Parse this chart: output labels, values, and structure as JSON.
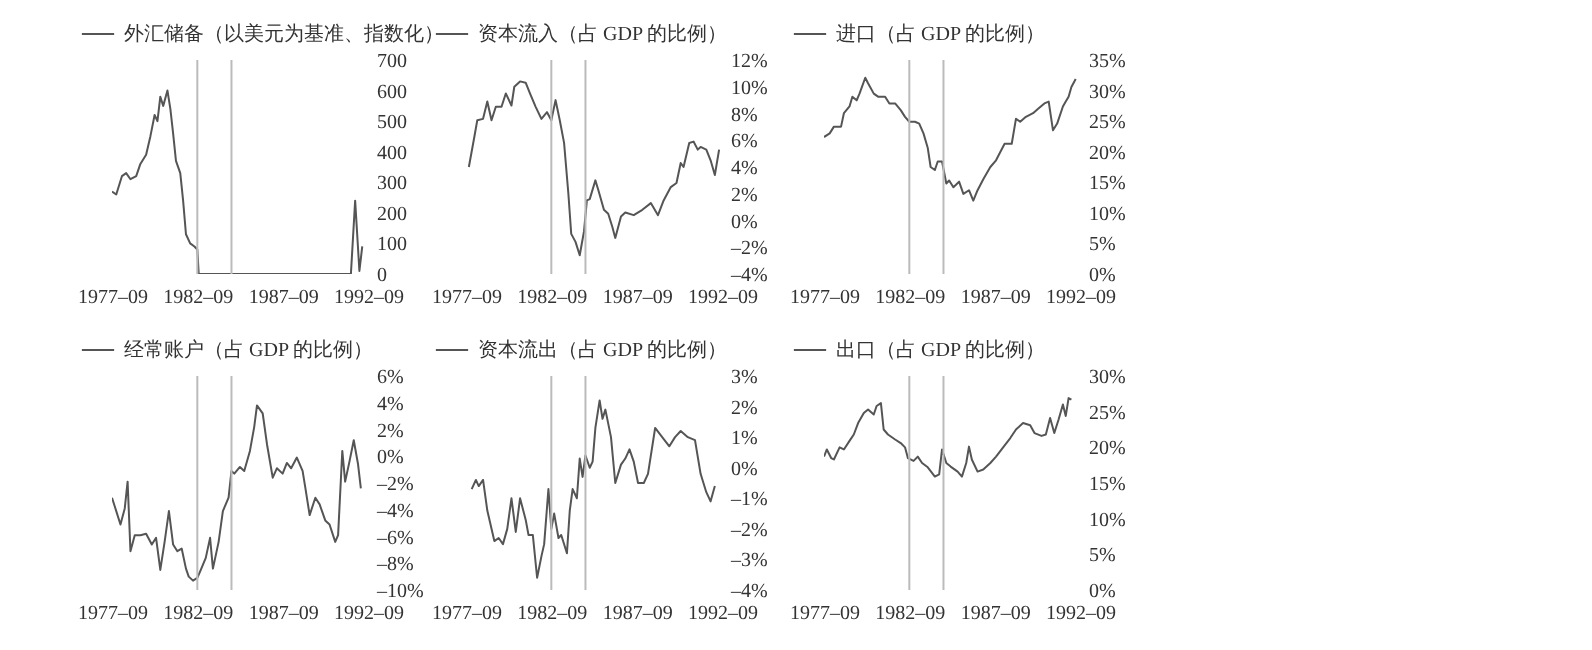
{
  "chart_data": [
    {
      "type": "line",
      "legend": "top",
      "xlim": [
        "1977-09",
        "1992-09"
      ],
      "xticks": [
        {
          "value": "1977-09",
          "label": "1977–09"
        },
        {
          "value": "1982-09",
          "label": "1982–09"
        },
        {
          "value": "1987-09",
          "label": "1987–09"
        },
        {
          "value": "1992-09",
          "label": "1992–09"
        }
      ],
      "ylim": [
        0,
        700
      ],
      "yticks": [
        0,
        100,
        200,
        300,
        400,
        500,
        600,
        700
      ],
      "ref_lines": [
        {
          "axis": "x",
          "value": "1982-09",
          "color": "#bbbbbb"
        },
        {
          "axis": "x",
          "value": "1984-09",
          "color": "#bbbbbb"
        }
      ],
      "x": [
        "1977-09",
        "1977-12",
        "1978-04",
        "1978-07",
        "1978-10",
        "1979-02",
        "1979-05",
        "1979-09",
        "1979-12",
        "1980-03",
        "1980-05",
        "1980-07",
        "1980-09",
        "1980-12",
        "1981-02",
        "1981-04",
        "1981-06",
        "1981-09",
        "1981-11",
        "1982-01",
        "1982-04",
        "1982-07",
        "1982-09",
        "1982-10",
        "1991-09",
        "1991-12",
        "1992-03",
        "1992-05"
      ],
      "series": [
        {
          "name": "外汇储备（以美元为基准、指数化）",
          "color": "#555555",
          "values": [
            270,
            260,
            320,
            330,
            310,
            320,
            360,
            390,
            450,
            520,
            500,
            580,
            550,
            600,
            540,
            460,
            370,
            330,
            240,
            130,
            100,
            90,
            80,
            0,
            0,
            240,
            10,
            90
          ]
        }
      ]
    },
    {
      "type": "line",
      "legend": "top left",
      "xlim": [
        "1977-09",
        "1992-09"
      ],
      "xticks": [
        {
          "value": "1977-09",
          "label": "1977–09"
        },
        {
          "value": "1982-09",
          "label": "1982–09"
        },
        {
          "value": "1987-09",
          "label": "1987–09"
        },
        {
          "value": "1992-09",
          "label": "1992–09"
        }
      ],
      "ylim": [
        -4,
        12
      ],
      "yticks": [
        {
          "value": -4,
          "label": "–4%"
        },
        {
          "value": -2,
          "label": "–2%"
        },
        {
          "value": 0,
          "label": "0%"
        },
        {
          "value": 2,
          "label": "2%"
        },
        {
          "value": 4,
          "label": "4%"
        },
        {
          "value": 6,
          "label": "6%"
        },
        {
          "value": 8,
          "label": "8%"
        },
        {
          "value": 10,
          "label": "10%"
        },
        {
          "value": 12,
          "label": "12%"
        }
      ],
      "ref_lines": [
        {
          "axis": "x",
          "value": "1982-09",
          "color": "#bbbbbb"
        },
        {
          "axis": "x",
          "value": "1984-09",
          "color": "#bbbbbb"
        }
      ],
      "x": [
        "1977-11",
        "1978-03",
        "1978-05",
        "1978-09",
        "1978-12",
        "1979-03",
        "1979-06",
        "1979-10",
        "1980-01",
        "1980-05",
        "1980-07",
        "1980-11",
        "1981-03",
        "1981-06",
        "1981-10",
        "1982-02",
        "1982-06",
        "1982-09",
        "1982-12",
        "1983-03",
        "1983-06",
        "1983-09",
        "1983-11",
        "1984-02",
        "1984-05",
        "1984-08",
        "1984-10",
        "1984-12",
        "1985-04",
        "1985-06",
        "1985-10",
        "1986-01",
        "1986-04",
        "1986-06",
        "1986-10",
        "1987-01",
        "1987-07",
        "1988-01",
        "1988-07",
        "1988-12",
        "1989-04",
        "1989-09",
        "1990-01",
        "1990-04",
        "1990-06",
        "1990-10",
        "1991-01",
        "1991-04",
        "1991-06",
        "1991-10",
        "1992-01",
        "1992-04",
        "1992-07"
      ],
      "series": [
        {
          "name": "资本流入（占 GDP 的比例）",
          "color": "#555555",
          "values": [
            4.0,
            6.3,
            7.5,
            7.6,
            8.9,
            7.5,
            8.5,
            8.5,
            9.5,
            8.6,
            10.0,
            10.4,
            10.3,
            9.5,
            8.5,
            7.6,
            8.1,
            7.5,
            9.0,
            7.5,
            5.8,
            2.0,
            -1.0,
            -1.6,
            -2.6,
            -0.8,
            1.5,
            1.6,
            3.0,
            2.3,
            0.8,
            0.5,
            -0.5,
            -1.3,
            0.3,
            0.6,
            0.4,
            0.8,
            1.3,
            0.4,
            1.5,
            2.5,
            2.8,
            4.3,
            4.0,
            5.8,
            5.9,
            5.3,
            5.5,
            5.3,
            4.5,
            3.4,
            5.3
          ]
        }
      ]
    },
    {
      "type": "line",
      "legend": "top left",
      "xlim": [
        "1977-09",
        "1992-09"
      ],
      "xticks": [
        {
          "value": "1977-09",
          "label": "1977–09"
        },
        {
          "value": "1982-09",
          "label": "1982–09"
        },
        {
          "value": "1987-09",
          "label": "1987–09"
        },
        {
          "value": "1992-09",
          "label": "1992–09"
        }
      ],
      "ylim": [
        0,
        35
      ],
      "yticks": [
        {
          "value": 0,
          "label": "0%"
        },
        {
          "value": 5,
          "label": "5%"
        },
        {
          "value": 10,
          "label": "10%"
        },
        {
          "value": 15,
          "label": "15%"
        },
        {
          "value": 20,
          "label": "20%"
        },
        {
          "value": 25,
          "label": "25%"
        },
        {
          "value": 30,
          "label": "30%"
        },
        {
          "value": 35,
          "label": "35%"
        }
      ],
      "ref_lines": [
        {
          "axis": "x",
          "value": "1982-09",
          "color": "#bbbbbb"
        },
        {
          "axis": "x",
          "value": "1984-09",
          "color": "#bbbbbb"
        }
      ],
      "x": [
        "1977-09",
        "1978-01",
        "1978-04",
        "1978-09",
        "1978-11",
        "1979-03",
        "1979-05",
        "1979-08",
        "1979-10",
        "1980-02",
        "1980-04",
        "1980-08",
        "1980-11",
        "1981-04",
        "1981-07",
        "1981-11",
        "1982-03",
        "1982-06",
        "1982-09",
        "1983-01",
        "1983-04",
        "1983-07",
        "1983-10",
        "1983-12",
        "1984-03",
        "1984-05",
        "1984-08",
        "1984-11",
        "1985-01",
        "1985-04",
        "1985-08",
        "1985-11",
        "1986-03",
        "1986-06",
        "1986-09",
        "1987-01",
        "1987-06",
        "1987-10",
        "1988-04",
        "1988-09",
        "1988-12",
        "1989-03",
        "1989-07",
        "1989-12",
        "1990-04",
        "1990-08",
        "1990-11",
        "1991-02",
        "1991-05",
        "1991-09",
        "1991-11",
        "1992-01",
        "1992-03",
        "1992-06"
      ],
      "series": [
        {
          "name": "进口（占 GDP 的比例）",
          "color": "#555555",
          "values": [
            22.4,
            23.0,
            24.1,
            24.1,
            26.3,
            27.4,
            29.0,
            28.4,
            29.5,
            32.1,
            31.2,
            29.5,
            29.0,
            29.0,
            27.9,
            27.9,
            26.8,
            25.7,
            24.9,
            24.9,
            24.6,
            23.0,
            20.6,
            17.5,
            17.0,
            18.4,
            18.4,
            14.8,
            15.3,
            14.2,
            15.1,
            13.1,
            13.7,
            12.0,
            13.7,
            15.5,
            17.5,
            18.6,
            21.3,
            21.3,
            25.4,
            24.9,
            25.7,
            26.3,
            27.1,
            27.9,
            28.2,
            23.5,
            24.6,
            27.4,
            28.2,
            29.0,
            30.6,
            31.9
          ]
        }
      ]
    },
    {
      "type": "line",
      "legend": "top left",
      "xlim": [
        "1977-09",
        "1992-09"
      ],
      "xticks": [
        {
          "value": "1977-09",
          "label": "1977–09"
        },
        {
          "value": "1982-09",
          "label": "1982–09"
        },
        {
          "value": "1987-09",
          "label": "1987–09"
        },
        {
          "value": "1992-09",
          "label": "1992–09"
        }
      ],
      "ylim": [
        -10,
        6
      ],
      "yticks": [
        {
          "value": -10,
          "label": "–10%"
        },
        {
          "value": -8,
          "label": "–8%"
        },
        {
          "value": -6,
          "label": "–6%"
        },
        {
          "value": -4,
          "label": "–4%"
        },
        {
          "value": -2,
          "label": "–2%"
        },
        {
          "value": 0,
          "label": "0%"
        },
        {
          "value": 2,
          "label": "2%"
        },
        {
          "value": 4,
          "label": "4%"
        },
        {
          "value": 6,
          "label": "6%"
        }
      ],
      "ref_lines": [
        {
          "axis": "x",
          "value": "1982-09",
          "color": "#bbbbbb"
        },
        {
          "axis": "x",
          "value": "1984-09",
          "color": "#bbbbbb"
        }
      ],
      "x": [
        "1977-09",
        "1977-12",
        "1978-03",
        "1978-06",
        "1978-08",
        "1978-10",
        "1979-01",
        "1979-05",
        "1979-09",
        "1980-01",
        "1980-04",
        "1980-07",
        "1980-10",
        "1981-01",
        "1981-04",
        "1981-07",
        "1981-10",
        "1982-01",
        "1982-03",
        "1982-06",
        "1982-09",
        "1982-11",
        "1983-03",
        "1983-06",
        "1983-08",
        "1983-12",
        "1984-03",
        "1984-07",
        "1984-09",
        "1984-11",
        "1985-03",
        "1985-06",
        "1985-10",
        "1986-01",
        "1986-03",
        "1986-07",
        "1986-10",
        "1987-02",
        "1987-05",
        "1987-09",
        "1987-12",
        "1988-03",
        "1988-07",
        "1988-11",
        "1989-01",
        "1989-04",
        "1989-08",
        "1989-11",
        "1990-03",
        "1990-06",
        "1990-10",
        "1990-12",
        "1991-03",
        "1991-05",
        "1991-08",
        "1991-11",
        "1992-02",
        "1992-04"
      ],
      "series": [
        {
          "name": "经常账户（占 GDP 的比例）",
          "color": "#555555",
          "values": [
            -3.1,
            -4.1,
            -5.1,
            -3.9,
            -1.9,
            -7.1,
            -5.9,
            -5.9,
            -5.8,
            -6.6,
            -6.1,
            -8.5,
            -6.4,
            -4.1,
            -6.6,
            -7.1,
            -6.9,
            -8.4,
            -9.0,
            -9.3,
            -9.1,
            -8.6,
            -7.6,
            -6.1,
            -8.4,
            -6.4,
            -4.1,
            -3.1,
            -1.1,
            -1.3,
            -0.8,
            -1.1,
            0.4,
            2.2,
            3.8,
            3.2,
            0.9,
            -1.6,
            -0.9,
            -1.3,
            -0.5,
            -0.9,
            -0.1,
            -1.1,
            -2.4,
            -4.4,
            -3.1,
            -3.6,
            -4.8,
            -5.1,
            -6.4,
            -5.9,
            0.4,
            -1.9,
            -0.4,
            1.2,
            -0.6,
            -2.4
          ]
        }
      ]
    },
    {
      "type": "line",
      "legend": "top left",
      "xlim": [
        "1977-09",
        "1992-09"
      ],
      "xticks": [
        {
          "value": "1977-09",
          "label": "1977–09"
        },
        {
          "value": "1982-09",
          "label": "1982–09"
        },
        {
          "value": "1987-09",
          "label": "1987–09"
        },
        {
          "value": "1992-09",
          "label": "1992–09"
        }
      ],
      "ylim": [
        -4,
        3
      ],
      "yticks": [
        {
          "value": -4,
          "label": "–4%"
        },
        {
          "value": -3,
          "label": "–3%"
        },
        {
          "value": -2,
          "label": "–2%"
        },
        {
          "value": -1,
          "label": "–1%"
        },
        {
          "value": 0,
          "label": "0%"
        },
        {
          "value": 1,
          "label": "1%"
        },
        {
          "value": 2,
          "label": "2%"
        },
        {
          "value": 3,
          "label": "3%"
        }
      ],
      "ref_lines": [
        {
          "axis": "x",
          "value": "1982-09",
          "color": "#bbbbbb"
        },
        {
          "axis": "x",
          "value": "1984-09",
          "color": "#bbbbbb"
        }
      ],
      "x": [
        "1978-01",
        "1978-04",
        "1978-06",
        "1978-09",
        "1978-12",
        "1979-05",
        "1979-08",
        "1979-11",
        "1980-02",
        "1980-05",
        "1980-08",
        "1980-11",
        "1981-03",
        "1981-05",
        "1981-08",
        "1981-11",
        "1982-02",
        "1982-04",
        "1982-07",
        "1982-09",
        "1982-11",
        "1983-02",
        "1983-04",
        "1983-08",
        "1983-10",
        "1983-12",
        "1984-03",
        "1984-05",
        "1984-07",
        "1984-09",
        "1984-12",
        "1985-02",
        "1985-04",
        "1985-07",
        "1985-09",
        "1985-11",
        "1986-03",
        "1986-06",
        "1986-10",
        "1987-01",
        "1987-04",
        "1987-07",
        "1987-10",
        "1988-02",
        "1988-05",
        "1988-10",
        "1989-03",
        "1989-08",
        "1989-12",
        "1990-04",
        "1990-09",
        "1991-02",
        "1991-06",
        "1991-10",
        "1992-01",
        "1992-04"
      ],
      "series": [
        {
          "name": "资本流出（占 GDP 的比例）",
          "color": "#555555",
          "values": [
            -0.7,
            -0.4,
            -0.6,
            -0.4,
            -1.4,
            -2.4,
            -2.3,
            -2.5,
            -2.0,
            -1.0,
            -2.1,
            -1.0,
            -1.7,
            -2.2,
            -2.2,
            -3.6,
            -2.9,
            -2.5,
            -0.7,
            -2.0,
            -1.5,
            -2.3,
            -2.2,
            -2.8,
            -1.4,
            -0.7,
            -1.0,
            0.3,
            -0.3,
            0.4,
            0.0,
            0.2,
            1.3,
            2.2,
            1.6,
            1.9,
            1.0,
            -0.5,
            0.1,
            0.3,
            0.6,
            0.2,
            -0.5,
            -0.5,
            -0.2,
            1.3,
            1.0,
            0.7,
            1.0,
            1.2,
            1.0,
            0.9,
            -0.2,
            -0.8,
            -1.1,
            -0.6
          ]
        }
      ]
    },
    {
      "type": "line",
      "legend": "top left",
      "xlim": [
        "1977-09",
        "1992-09"
      ],
      "xticks": [
        {
          "value": "1977-09",
          "label": "1977–09"
        },
        {
          "value": "1982-09",
          "label": "1982–09"
        },
        {
          "value": "1987-09",
          "label": "1987–09"
        },
        {
          "value": "1992-09",
          "label": "1992–09"
        }
      ],
      "ylim": [
        0,
        30
      ],
      "yticks": [
        {
          "value": 0,
          "label": "0%"
        },
        {
          "value": 5,
          "label": "5%"
        },
        {
          "value": 10,
          "label": "10%"
        },
        {
          "value": 15,
          "label": "15%"
        },
        {
          "value": 20,
          "label": "20%"
        },
        {
          "value": 25,
          "label": "25%"
        },
        {
          "value": 30,
          "label": "30%"
        }
      ],
      "ref_lines": [
        {
          "axis": "x",
          "value": "1982-09",
          "color": "#bbbbbb"
        },
        {
          "axis": "x",
          "value": "1984-09",
          "color": "#bbbbbb"
        }
      ],
      "x": [
        "1977-09",
        "1977-11",
        "1978-02",
        "1978-04",
        "1978-08",
        "1978-11",
        "1979-03",
        "1979-06",
        "1979-09",
        "1980-01",
        "1980-04",
        "1980-08",
        "1980-10",
        "1981-01",
        "1981-03",
        "1981-06",
        "1981-11",
        "1982-03",
        "1982-06",
        "1982-08",
        "1982-12",
        "1983-03",
        "1983-06",
        "1983-10",
        "1984-03",
        "1984-06",
        "1984-08",
        "1984-11",
        "1985-02",
        "1985-07",
        "1985-10",
        "1986-01",
        "1986-03",
        "1986-05",
        "1986-09",
        "1987-01",
        "1987-06",
        "1987-10",
        "1988-03",
        "1988-08",
        "1988-12",
        "1989-05",
        "1989-10",
        "1990-01",
        "1990-06",
        "1990-09",
        "1990-12",
        "1991-03",
        "1991-06",
        "1991-09",
        "1991-11",
        "1992-01",
        "1992-03"
      ],
      "series": [
        {
          "name": "出口（占 GDP 的比例）",
          "color": "#555555",
          "values": [
            18.7,
            19.7,
            18.5,
            18.3,
            20.0,
            19.7,
            20.9,
            21.8,
            23.4,
            24.8,
            25.3,
            24.6,
            25.8,
            26.2,
            22.5,
            21.8,
            21.1,
            20.6,
            20.0,
            18.5,
            18.1,
            18.7,
            17.8,
            17.2,
            15.9,
            16.2,
            19.7,
            17.8,
            17.3,
            16.6,
            15.9,
            17.8,
            20.1,
            18.3,
            16.6,
            16.9,
            17.8,
            18.7,
            20.0,
            21.3,
            22.5,
            23.4,
            23.1,
            22.0,
            21.6,
            21.8,
            24.1,
            22.0,
            23.9,
            26.0,
            24.4,
            26.9,
            26.7
          ]
        }
      ]
    }
  ]
}
